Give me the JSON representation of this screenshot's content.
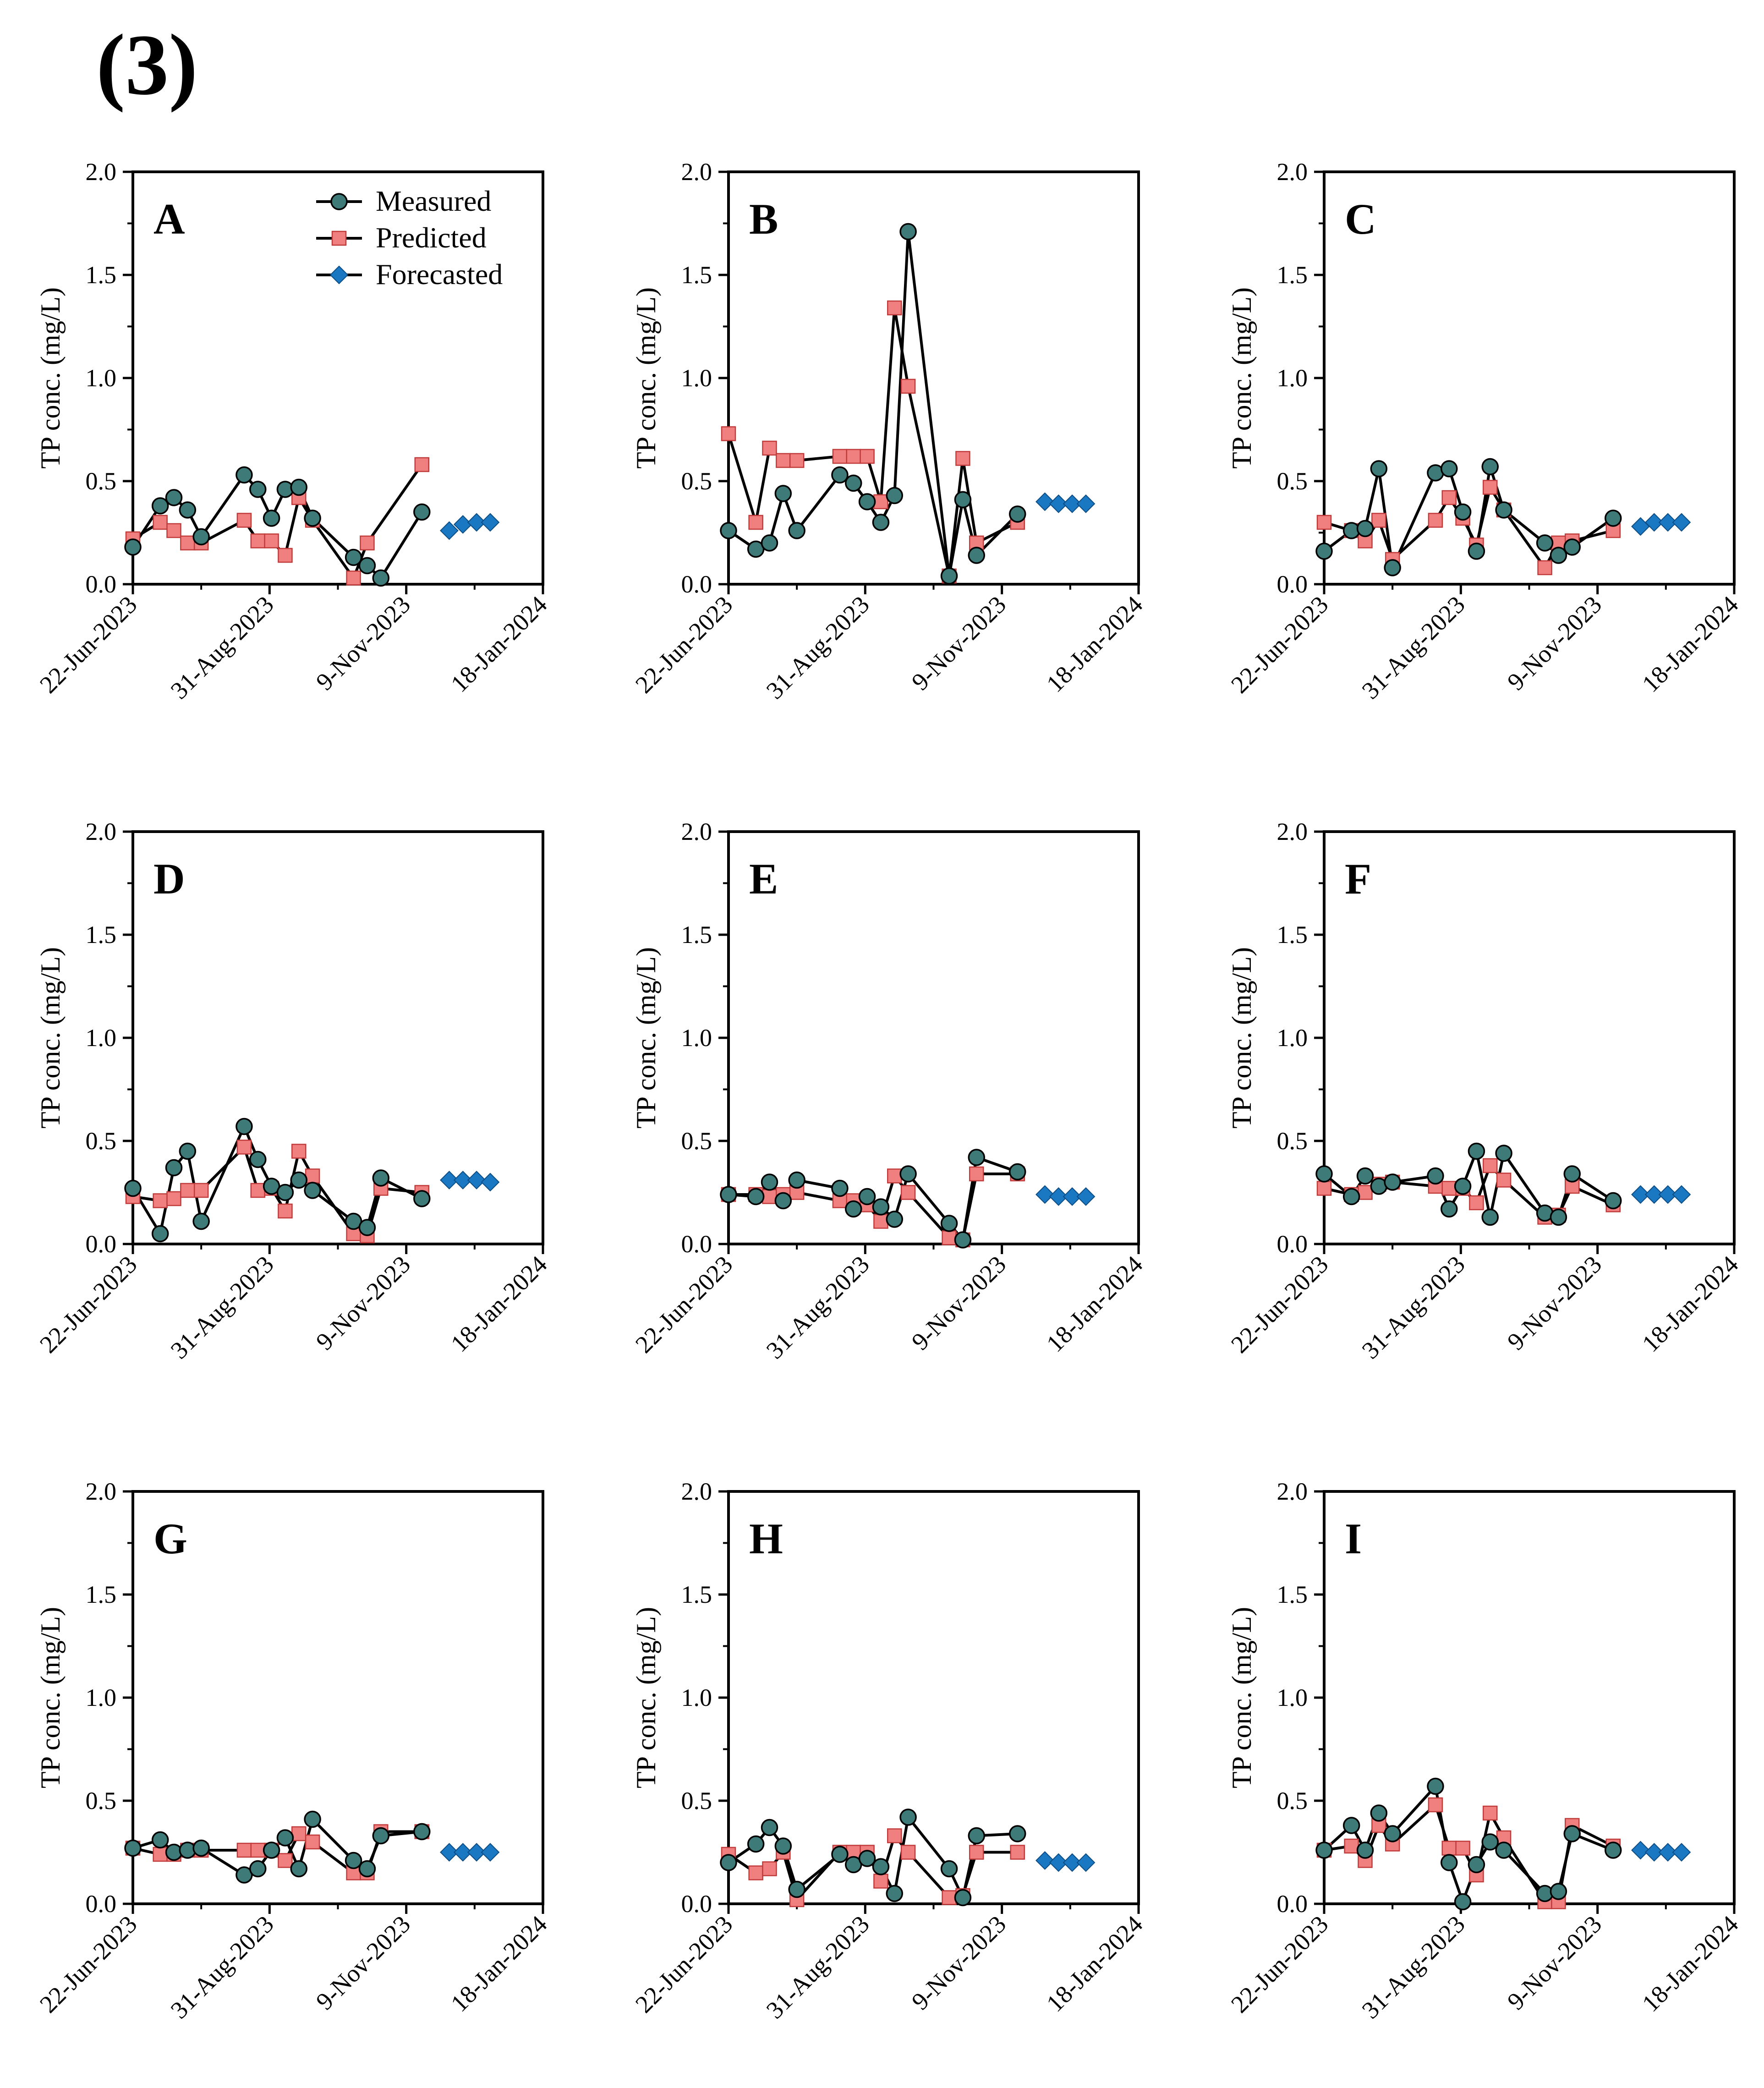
{
  "figure_label": "(3)",
  "legend": [
    "Measured",
    "Predicted",
    "Forecasted"
  ],
  "colors": {
    "measured": "#3d7a78",
    "predicted": "#f08080",
    "forecasted": "#1a78c2",
    "line": "#000000"
  },
  "chart_data": [
    {
      "type": "line",
      "panel": "A",
      "ylabel": "TP conc. (mg/L)",
      "ylim": [
        0,
        2.0
      ],
      "yticks": [
        "0.0",
        "0.5",
        "1.0",
        "1.5",
        "2.0"
      ],
      "xticks": [
        "22-Jun-2023",
        "31-Aug-2023",
        "9-Nov-2023",
        "18-Jan-2024"
      ],
      "xlim_days": [
        0,
        210
      ],
      "xtick_days": [
        0,
        70,
        140,
        210
      ],
      "legend_shown": true,
      "series": [
        {
          "name": "Measured",
          "x": [
            0,
            14,
            21,
            28,
            35,
            57,
            64,
            71,
            78,
            85,
            92,
            113,
            120,
            127,
            148
          ],
          "y": [
            0.18,
            0.38,
            0.42,
            0.36,
            0.23,
            0.53,
            0.46,
            0.32,
            0.46,
            0.47,
            0.32,
            0.13,
            0.09,
            0.03,
            0.35
          ]
        },
        {
          "name": "Predicted",
          "x": [
            0,
            14,
            21,
            28,
            35,
            57,
            64,
            71,
            78,
            85,
            92,
            113,
            120,
            148
          ],
          "y": [
            0.22,
            0.3,
            0.26,
            0.2,
            0.2,
            0.31,
            0.21,
            0.21,
            0.14,
            0.42,
            0.31,
            0.03,
            0.2,
            0.58
          ]
        },
        {
          "name": "Forecasted",
          "x": [
            162,
            169,
            176,
            183
          ],
          "y": [
            0.26,
            0.29,
            0.3,
            0.3
          ]
        }
      ]
    },
    {
      "type": "line",
      "panel": "B",
      "ylabel": "TP conc. (mg/L)",
      "ylim": [
        0,
        2.0
      ],
      "yticks": [
        "0.0",
        "0.5",
        "1.0",
        "1.5",
        "2.0"
      ],
      "xticks": [
        "22-Jun-2023",
        "31-Aug-2023",
        "9-Nov-2023",
        "18-Jan-2024"
      ],
      "xlim_days": [
        0,
        210
      ],
      "xtick_days": [
        0,
        70,
        140,
        210
      ],
      "legend_shown": false,
      "series": [
        {
          "name": "Measured",
          "x": [
            0,
            14,
            21,
            28,
            35,
            57,
            64,
            71,
            78,
            85,
            92,
            113,
            120,
            127,
            148
          ],
          "y": [
            0.26,
            0.17,
            0.2,
            0.44,
            0.26,
            0.53,
            0.49,
            0.4,
            0.3,
            0.43,
            1.71,
            0.04,
            0.41,
            0.14,
            0.34
          ]
        },
        {
          "name": "Predicted",
          "x": [
            0,
            14,
            21,
            28,
            35,
            57,
            64,
            71,
            78,
            85,
            92,
            113,
            120,
            127,
            148
          ],
          "y": [
            0.73,
            0.3,
            0.66,
            0.6,
            0.6,
            0.62,
            0.62,
            0.62,
            0.4,
            1.34,
            0.96,
            0.04,
            0.61,
            0.2,
            0.3
          ]
        },
        {
          "name": "Forecasted",
          "x": [
            162,
            169,
            176,
            183
          ],
          "y": [
            0.4,
            0.39,
            0.39,
            0.39
          ]
        }
      ]
    },
    {
      "type": "line",
      "panel": "C",
      "ylabel": "TP conc. (mg/L)",
      "ylim": [
        0,
        2.0
      ],
      "yticks": [
        "0.0",
        "0.5",
        "1.0",
        "1.5",
        "2.0"
      ],
      "xticks": [
        "22-Jun-2023",
        "31-Aug-2023",
        "9-Nov-2023",
        "18-Jan-2024"
      ],
      "xlim_days": [
        0,
        210
      ],
      "xtick_days": [
        0,
        70,
        140,
        210
      ],
      "legend_shown": false,
      "series": [
        {
          "name": "Measured",
          "x": [
            0,
            14,
            21,
            28,
            35,
            57,
            64,
            71,
            78,
            85,
            92,
            113,
            120,
            127,
            148
          ],
          "y": [
            0.16,
            0.26,
            0.27,
            0.56,
            0.08,
            0.54,
            0.56,
            0.35,
            0.16,
            0.57,
            0.36,
            0.2,
            0.14,
            0.18,
            0.32
          ]
        },
        {
          "name": "Predicted",
          "x": [
            0,
            14,
            21,
            28,
            35,
            57,
            64,
            71,
            78,
            85,
            92,
            113,
            120,
            127,
            148
          ],
          "y": [
            0.3,
            0.26,
            0.21,
            0.31,
            0.12,
            0.31,
            0.42,
            0.32,
            0.19,
            0.47,
            0.36,
            0.08,
            0.2,
            0.21,
            0.26
          ]
        },
        {
          "name": "Forecasted",
          "x": [
            162,
            169,
            176,
            183
          ],
          "y": [
            0.28,
            0.3,
            0.3,
            0.3
          ]
        }
      ]
    },
    {
      "type": "line",
      "panel": "D",
      "ylabel": "TP conc. (mg/L)",
      "ylim": [
        0,
        2.0
      ],
      "yticks": [
        "0.0",
        "0.5",
        "1.0",
        "1.5",
        "2.0"
      ],
      "xticks": [
        "22-Jun-2023",
        "31-Aug-2023",
        "9-Nov-2023",
        "18-Jan-2024"
      ],
      "xlim_days": [
        0,
        210
      ],
      "xtick_days": [
        0,
        70,
        140,
        210
      ],
      "legend_shown": false,
      "series": [
        {
          "name": "Measured",
          "x": [
            0,
            14,
            21,
            28,
            35,
            57,
            64,
            71,
            78,
            85,
            92,
            113,
            120,
            127,
            148
          ],
          "y": [
            0.27,
            0.05,
            0.37,
            0.45,
            0.11,
            0.57,
            0.41,
            0.28,
            0.25,
            0.31,
            0.26,
            0.11,
            0.08,
            0.32,
            0.22
          ]
        },
        {
          "name": "Predicted",
          "x": [
            0,
            14,
            21,
            28,
            35,
            57,
            64,
            71,
            78,
            85,
            92,
            113,
            120,
            127,
            148
          ],
          "y": [
            0.23,
            0.21,
            0.22,
            0.26,
            0.26,
            0.47,
            0.26,
            0.27,
            0.16,
            0.45,
            0.33,
            0.05,
            0.04,
            0.27,
            0.25
          ]
        },
        {
          "name": "Forecasted",
          "x": [
            162,
            169,
            176,
            183
          ],
          "y": [
            0.31,
            0.31,
            0.31,
            0.3
          ]
        }
      ]
    },
    {
      "type": "line",
      "panel": "E",
      "ylabel": "TP conc. (mg/L)",
      "ylim": [
        0,
        2.0
      ],
      "yticks": [
        "0.0",
        "0.5",
        "1.0",
        "1.5",
        "2.0"
      ],
      "xticks": [
        "22-Jun-2023",
        "31-Aug-2023",
        "9-Nov-2023",
        "18-Jan-2024"
      ],
      "xlim_days": [
        0,
        210
      ],
      "xtick_days": [
        0,
        70,
        140,
        210
      ],
      "legend_shown": false,
      "series": [
        {
          "name": "Measured",
          "x": [
            0,
            14,
            21,
            28,
            35,
            57,
            64,
            71,
            78,
            85,
            92,
            113,
            120,
            127,
            148
          ],
          "y": [
            0.24,
            0.23,
            0.3,
            0.21,
            0.31,
            0.27,
            0.17,
            0.23,
            0.18,
            0.12,
            0.34,
            0.1,
            0.02,
            0.42,
            0.35
          ]
        },
        {
          "name": "Predicted",
          "x": [
            0,
            14,
            21,
            28,
            35,
            57,
            64,
            71,
            78,
            85,
            92,
            113,
            120,
            127,
            148
          ],
          "y": [
            0.24,
            0.24,
            0.23,
            0.24,
            0.25,
            0.21,
            0.21,
            0.19,
            0.11,
            0.33,
            0.25,
            0.03,
            0.02,
            0.34,
            0.34
          ]
        },
        {
          "name": "Forecasted",
          "x": [
            162,
            169,
            176,
            183
          ],
          "y": [
            0.24,
            0.23,
            0.23,
            0.23
          ]
        }
      ]
    },
    {
      "type": "line",
      "panel": "F",
      "ylabel": "TP conc. (mg/L)",
      "ylim": [
        0,
        2.0
      ],
      "yticks": [
        "0.0",
        "0.5",
        "1.0",
        "1.5",
        "2.0"
      ],
      "xticks": [
        "22-Jun-2023",
        "31-Aug-2023",
        "9-Nov-2023",
        "18-Jan-2024"
      ],
      "xlim_days": [
        0,
        210
      ],
      "xtick_days": [
        0,
        70,
        140,
        210
      ],
      "legend_shown": false,
      "series": [
        {
          "name": "Measured",
          "x": [
            0,
            14,
            21,
            28,
            35,
            57,
            64,
            71,
            78,
            85,
            92,
            113,
            120,
            127,
            148
          ],
          "y": [
            0.34,
            0.23,
            0.33,
            0.28,
            0.3,
            0.33,
            0.17,
            0.28,
            0.45,
            0.13,
            0.44,
            0.15,
            0.13,
            0.34,
            0.21
          ]
        },
        {
          "name": "Predicted",
          "x": [
            0,
            14,
            21,
            28,
            35,
            57,
            64,
            71,
            78,
            85,
            92,
            113,
            120,
            127,
            148
          ],
          "y": [
            0.27,
            0.24,
            0.25,
            0.29,
            0.3,
            0.28,
            0.27,
            0.27,
            0.2,
            0.38,
            0.31,
            0.13,
            0.14,
            0.28,
            0.19
          ]
        },
        {
          "name": "Forecasted",
          "x": [
            162,
            169,
            176,
            183
          ],
          "y": [
            0.24,
            0.24,
            0.24,
            0.24
          ]
        }
      ]
    },
    {
      "type": "line",
      "panel": "G",
      "ylabel": "TP conc. (mg/L)",
      "ylim": [
        0,
        2.0
      ],
      "yticks": [
        "0.0",
        "0.5",
        "1.0",
        "1.5",
        "2.0"
      ],
      "xticks": [
        "22-Jun-2023",
        "31-Aug-2023",
        "9-Nov-2023",
        "18-Jan-2024"
      ],
      "xlim_days": [
        0,
        210
      ],
      "xtick_days": [
        0,
        70,
        140,
        210
      ],
      "legend_shown": false,
      "series": [
        {
          "name": "Measured",
          "x": [
            0,
            14,
            21,
            28,
            35,
            57,
            64,
            71,
            78,
            85,
            92,
            113,
            120,
            127,
            148
          ],
          "y": [
            0.27,
            0.31,
            0.25,
            0.26,
            0.27,
            0.14,
            0.17,
            0.26,
            0.32,
            0.17,
            0.41,
            0.21,
            0.17,
            0.33,
            0.35
          ]
        },
        {
          "name": "Predicted",
          "x": [
            0,
            14,
            21,
            28,
            35,
            57,
            64,
            71,
            78,
            85,
            92,
            113,
            120,
            127,
            148
          ],
          "y": [
            0.27,
            0.24,
            0.24,
            0.26,
            0.26,
            0.26,
            0.26,
            0.26,
            0.21,
            0.34,
            0.3,
            0.15,
            0.15,
            0.35,
            0.35
          ]
        },
        {
          "name": "Forecasted",
          "x": [
            162,
            169,
            176,
            183
          ],
          "y": [
            0.25,
            0.25,
            0.25,
            0.25
          ]
        }
      ]
    },
    {
      "type": "line",
      "panel": "H",
      "ylabel": "TP conc. (mg/L)",
      "ylim": [
        0,
        2.0
      ],
      "yticks": [
        "0.0",
        "0.5",
        "1.0",
        "1.5",
        "2.0"
      ],
      "xticks": [
        "22-Jun-2023",
        "31-Aug-2023",
        "9-Nov-2023",
        "18-Jan-2024"
      ],
      "xlim_days": [
        0,
        210
      ],
      "xtick_days": [
        0,
        70,
        140,
        210
      ],
      "legend_shown": false,
      "series": [
        {
          "name": "Measured",
          "x": [
            0,
            14,
            21,
            28,
            35,
            57,
            64,
            71,
            78,
            85,
            92,
            113,
            120,
            127,
            148
          ],
          "y": [
            0.2,
            0.29,
            0.37,
            0.28,
            0.07,
            0.24,
            0.19,
            0.22,
            0.18,
            0.05,
            0.42,
            0.17,
            0.03,
            0.33,
            0.34
          ]
        },
        {
          "name": "Predicted",
          "x": [
            0,
            14,
            21,
            28,
            35,
            57,
            64,
            71,
            78,
            85,
            92,
            113,
            120,
            127,
            148
          ],
          "y": [
            0.24,
            0.15,
            0.17,
            0.25,
            0.02,
            0.25,
            0.25,
            0.25,
            0.11,
            0.33,
            0.25,
            0.03,
            0.04,
            0.25,
            0.25
          ]
        },
        {
          "name": "Forecasted",
          "x": [
            162,
            169,
            176,
            183
          ],
          "y": [
            0.21,
            0.2,
            0.2,
            0.2
          ]
        }
      ]
    },
    {
      "type": "line",
      "panel": "I",
      "ylabel": "TP conc. (mg/L)",
      "ylim": [
        0,
        2.0
      ],
      "yticks": [
        "0.0",
        "0.5",
        "1.0",
        "1.5",
        "2.0"
      ],
      "xticks": [
        "22-Jun-2023",
        "31-Aug-2023",
        "9-Nov-2023",
        "18-Jan-2024"
      ],
      "xlim_days": [
        0,
        210
      ],
      "xtick_days": [
        0,
        70,
        140,
        210
      ],
      "legend_shown": false,
      "series": [
        {
          "name": "Measured",
          "x": [
            0,
            14,
            21,
            28,
            35,
            57,
            64,
            71,
            78,
            85,
            92,
            113,
            120,
            127,
            148
          ],
          "y": [
            0.26,
            0.38,
            0.26,
            0.44,
            0.34,
            0.57,
            0.2,
            0.01,
            0.19,
            0.3,
            0.26,
            0.05,
            0.06,
            0.34,
            0.26
          ]
        },
        {
          "name": "Predicted",
          "x": [
            0,
            14,
            21,
            28,
            35,
            57,
            64,
            71,
            78,
            85,
            92,
            113,
            120,
            127,
            148
          ],
          "y": [
            0.26,
            0.28,
            0.21,
            0.38,
            0.29,
            0.48,
            0.27,
            0.27,
            0.14,
            0.44,
            0.32,
            0.01,
            0.01,
            0.38,
            0.28
          ]
        },
        {
          "name": "Forecasted",
          "x": [
            162,
            169,
            176,
            183
          ],
          "y": [
            0.26,
            0.25,
            0.25,
            0.25
          ]
        }
      ]
    }
  ]
}
